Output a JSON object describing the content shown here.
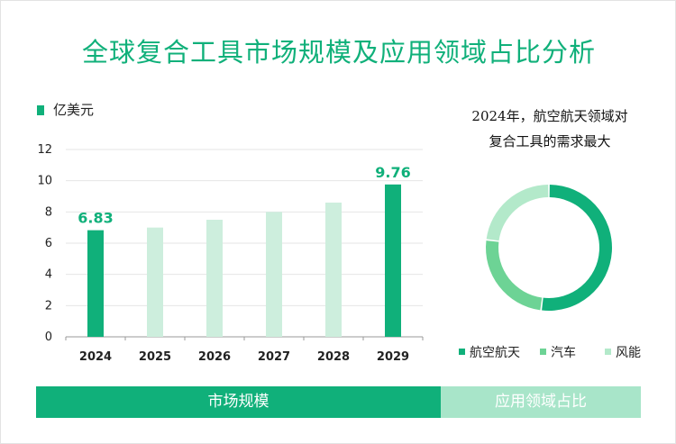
{
  "title": "全球复合工具市场规模及应用领域占比分析",
  "colors": {
    "accent": "#10b07a",
    "bar_light": "#cdeedd",
    "donut": [
      "#10b07a",
      "#6dd395",
      "#b3e9ca"
    ],
    "footer_right": "#a8e5c9"
  },
  "bar_chart": {
    "unit_label": "亿美元",
    "chart_data": {
      "type": "bar",
      "categories": [
        "2024",
        "2025",
        "2026",
        "2027",
        "2028",
        "2029"
      ],
      "values": [
        6.83,
        7.0,
        7.5,
        8.0,
        8.6,
        9.76
      ],
      "highlight": [
        true,
        false,
        false,
        false,
        false,
        true
      ],
      "data_labels": [
        "6.83",
        "",
        "",
        "",
        "",
        "9.76"
      ],
      "ylim": [
        0,
        12
      ],
      "yticks": [
        0,
        2,
        4,
        6,
        8,
        10,
        12
      ],
      "grid": true,
      "xlabel": "",
      "ylabel": ""
    }
  },
  "donut_chart": {
    "title_line1": "2024年，航空航天领域对",
    "title_line2": "复合工具的需求最大",
    "chart_data": {
      "type": "pie",
      "labels": [
        "航空航天",
        "汽车",
        "风能"
      ],
      "values": [
        52,
        25,
        23
      ]
    }
  },
  "footer": {
    "left_label": "市场规模",
    "right_label": "应用领域占比"
  }
}
